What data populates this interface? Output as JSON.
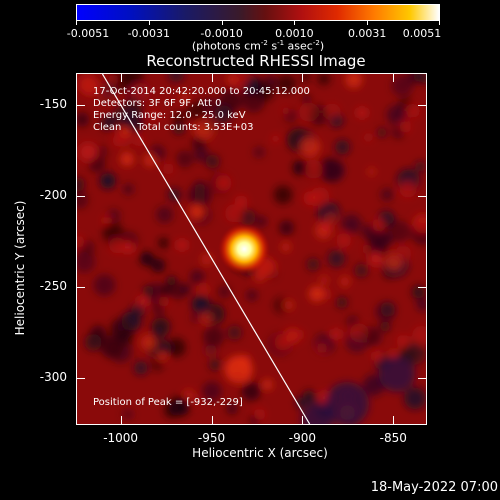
{
  "colorbar": {
    "tick_labels": [
      "-0.0051",
      "-0.0031",
      "-0.0010",
      "0.0010",
      "0.0031",
      "0.0051"
    ],
    "units_prefix": "(photons cm",
    "units_sup1": "-2",
    "units_mid1": " s",
    "units_sup2": "-1",
    "units_mid2": " asec",
    "units_sup3": "-2",
    "units_suffix": ")"
  },
  "title": "Reconstructed RHESSI Image",
  "info": {
    "time": "17-Oct-2014 20:42:20.000 to 20:45:12.000",
    "detectors": "Detectors: 3F 6F 9F, Att 0",
    "energy": "Energy Range: 12.0 - 25.0 keV",
    "clean": "Clean     Total counts: 3.53E+03",
    "peak": "Position of Peak = [-932,-229]"
  },
  "axes": {
    "xlabel": "Heliocentric X (arcsec)",
    "ylabel": "Heliocentric Y (arcsec)",
    "xticks": [
      "-1000",
      "-950",
      "-900",
      "-850"
    ],
    "yticks": [
      "-150",
      "-200",
      "-250",
      "-300"
    ]
  },
  "footer": {
    "timestamp": "18-May-2022 07:00"
  },
  "image": {
    "x_range": [
      -1024,
      -832
    ],
    "y_range": [
      -325,
      -133
    ],
    "peak": [
      -932,
      -229
    ],
    "limb_line": [
      [
        -1010,
        -133
      ],
      [
        -896,
        -325
      ]
    ]
  }
}
